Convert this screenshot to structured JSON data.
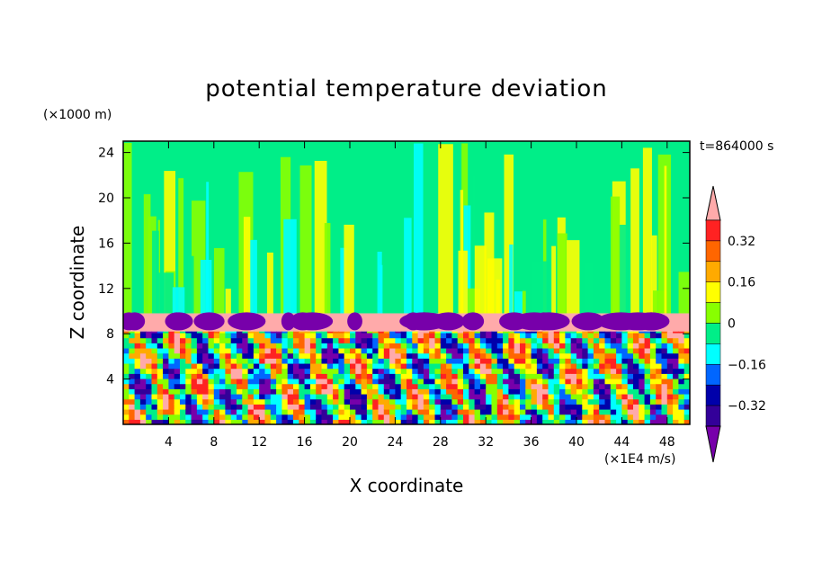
{
  "chart_data": {
    "type": "heatmap",
    "title": "potential temperature deviation",
    "xlabel": "X coordinate",
    "ylabel": "Z coordinate",
    "x_unit": "(×1E4 m/s)",
    "y_unit": "(×1000 m)",
    "time_label": "t=864000 s",
    "xlim": [
      0,
      50
    ],
    "ylim": [
      0,
      25
    ],
    "x_ticks": [
      4,
      8,
      12,
      16,
      20,
      24,
      28,
      32,
      36,
      40,
      44,
      48
    ],
    "y_ticks": [
      4,
      8,
      12,
      16,
      20,
      24
    ],
    "colorbar": {
      "tick_labels": [
        "0.32",
        "0.16",
        "0",
        "−0.16",
        "−0.32"
      ],
      "tick_values": [
        0.32,
        0.16,
        0,
        -0.16,
        -0.32
      ],
      "levels": [
        0.4,
        0.32,
        0.24,
        0.16,
        0.08,
        0,
        -0.08,
        -0.16,
        -0.24,
        -0.32,
        -0.4
      ],
      "colors": [
        "#ffaaaa",
        "#ff2222",
        "#ff6600",
        "#ffaa00",
        "#ffff00",
        "#88ff00",
        "#00ee88",
        "#00ffff",
        "#0066ff",
        "#0000aa",
        "#330099",
        "#7700aa"
      ],
      "extend": "both"
    },
    "regions": [
      {
        "zmin": 0,
        "zmax": 8.2,
        "description_value": "turbulent mixed values -0.4 to 0.4"
      },
      {
        "zmin": 8.2,
        "zmax": 9.8,
        "value": 0.4
      },
      {
        "zmin": 9.8,
        "zmax": 25,
        "value": 0.0
      }
    ]
  }
}
